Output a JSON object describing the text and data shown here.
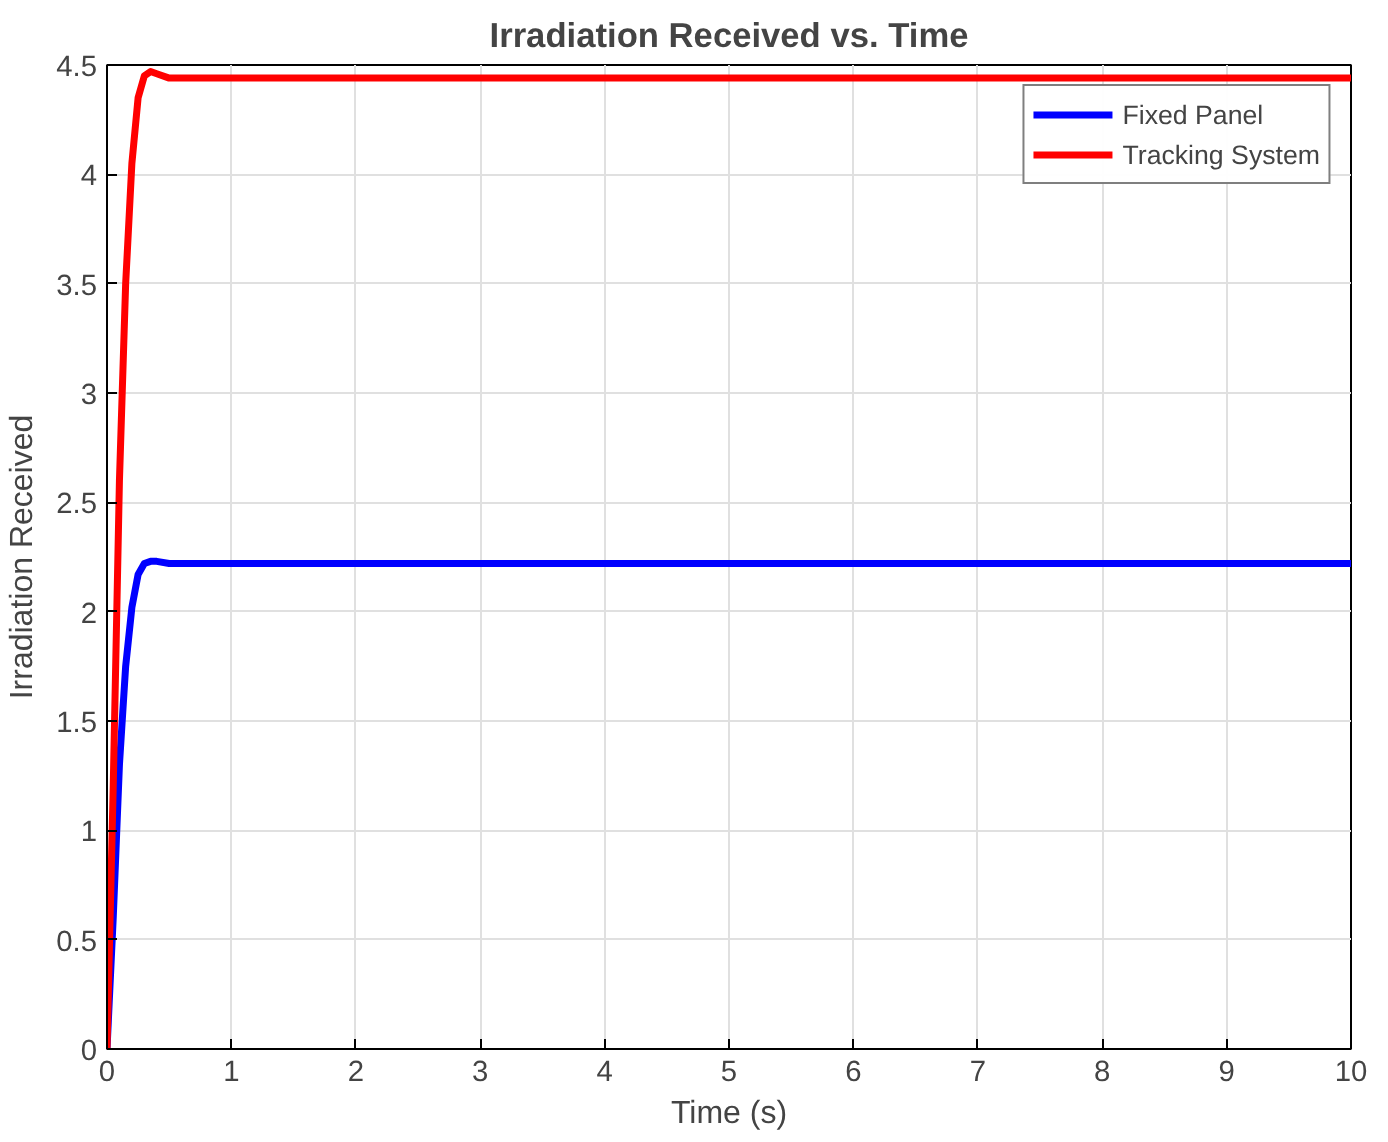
{
  "chart_data": {
    "type": "line",
    "title": "Irradiation Received vs. Time",
    "xlabel": "Time (s)",
    "ylabel": "Irradiation Received",
    "xlim": [
      0,
      10
    ],
    "ylim": [
      0,
      4.5
    ],
    "xticks": [
      0,
      1,
      2,
      3,
      4,
      5,
      6,
      7,
      8,
      9,
      10
    ],
    "yticks": [
      0,
      0.5,
      1,
      1.5,
      2,
      2.5,
      3,
      3.5,
      4,
      4.5
    ],
    "grid": true,
    "legend": "top right",
    "marker": "none",
    "line_style": "solid",
    "series": [
      {
        "name": "Fixed Panel",
        "color": "#0000ff",
        "x": [
          0,
          0.05,
          0.1,
          0.15,
          0.2,
          0.25,
          0.3,
          0.35,
          0.4,
          0.5,
          0.6,
          0.8,
          1,
          10
        ],
        "values": [
          0,
          0.6,
          1.3,
          1.75,
          2.02,
          2.17,
          2.22,
          2.23,
          2.23,
          2.22,
          2.22,
          2.22,
          2.22,
          2.22
        ]
      },
      {
        "name": "Tracking System",
        "color": "#ff0000",
        "x": [
          0,
          0.05,
          0.1,
          0.15,
          0.2,
          0.25,
          0.3,
          0.35,
          0.4,
          0.5,
          0.6,
          0.8,
          1,
          10
        ],
        "values": [
          0,
          1.2,
          2.6,
          3.5,
          4.05,
          4.35,
          4.45,
          4.47,
          4.46,
          4.44,
          4.44,
          4.44,
          4.44,
          4.44
        ]
      }
    ]
  }
}
